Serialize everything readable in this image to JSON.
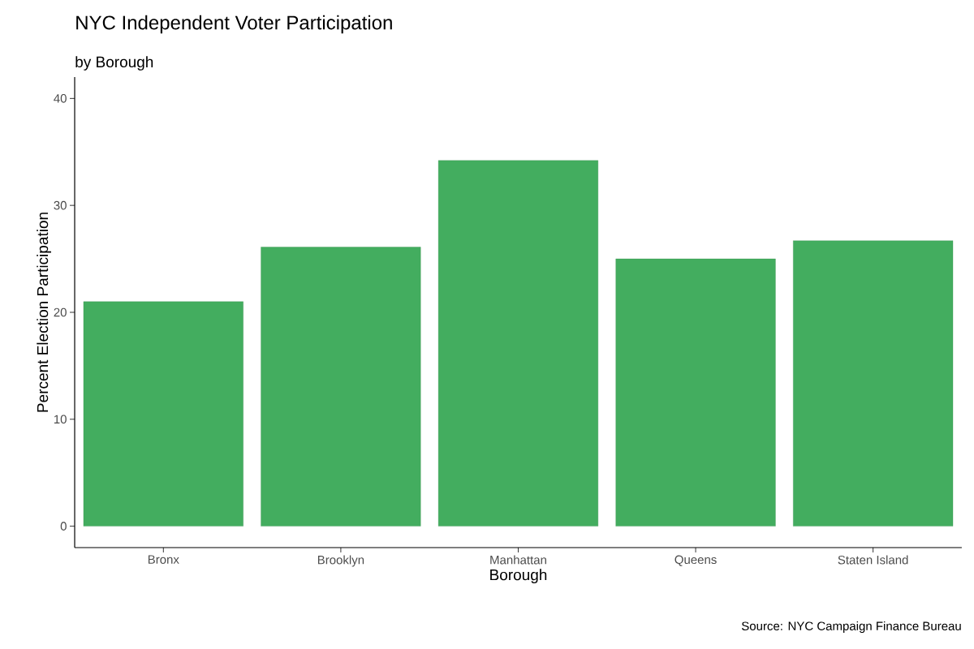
{
  "chart_data": {
    "type": "bar",
    "title": "NYC Independent Voter Participation",
    "subtitle": "by Borough",
    "xlabel": "Borough",
    "ylabel": "Percent Election Participation",
    "annotations": [
      "Source: NYC Campaign Finance Bureau"
    ],
    "categories": [
      "Bronx",
      "Brooklyn",
      "Manhattan",
      "Queens",
      "Staten Island"
    ],
    "values": [
      21.0,
      26.1,
      34.2,
      25.0,
      26.7
    ],
    "color": "#43ad5f",
    "ylim": [
      -2,
      42
    ],
    "yticks": [
      0,
      10,
      20,
      30,
      40
    ]
  }
}
